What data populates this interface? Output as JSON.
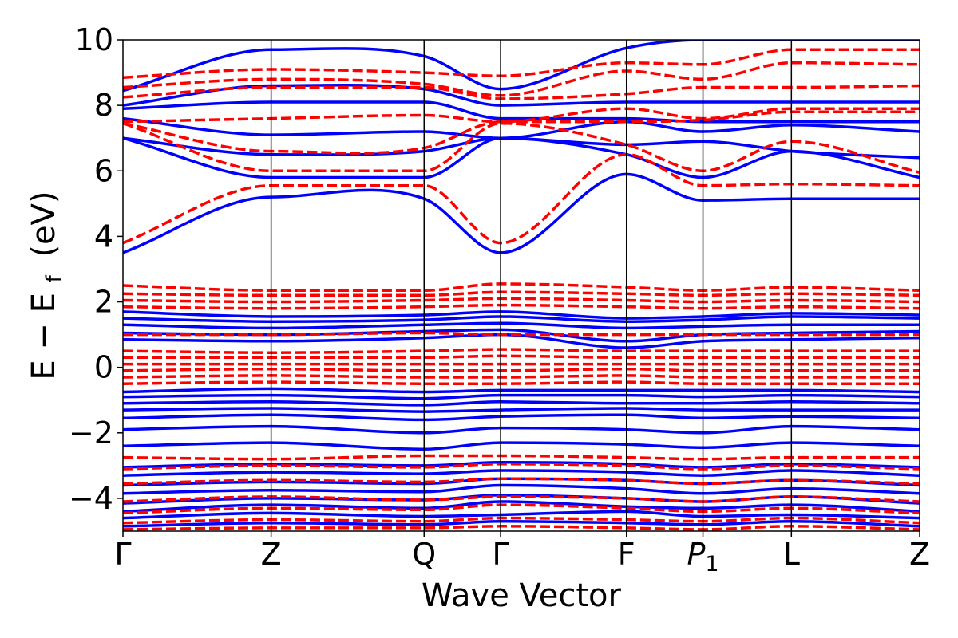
{
  "chart_data": {
    "type": "line",
    "title": "",
    "xlabel": "Wave Vector",
    "ylabel_main": "E − E",
    "ylabel_sub": "f",
    "ylabel_unit": "(eV)",
    "ylim": [
      -5,
      10
    ],
    "yticks": [
      -4,
      -2,
      0,
      2,
      4,
      6,
      8,
      10
    ],
    "ytick_labels": [
      "−4",
      "−2",
      "0",
      "2",
      "4",
      "6",
      "8",
      "10"
    ],
    "xlim": [
      0,
      1
    ],
    "kpoints": [
      {
        "x": 0.0,
        "label": "Γ"
      },
      {
        "x": 0.186,
        "label": "Z"
      },
      {
        "x": 0.378,
        "label": "Q"
      },
      {
        "x": 0.474,
        "label": "Γ"
      },
      {
        "x": 0.632,
        "label": "F"
      },
      {
        "x": 0.728,
        "label": "P",
        "sub": "1"
      },
      {
        "x": 0.839,
        "label": "L"
      },
      {
        "x": 1.0,
        "label": "Z"
      }
    ],
    "colors": {
      "series_a": "#0000ff",
      "series_b": "#ff0000",
      "axes": "#000000"
    },
    "series": [
      {
        "name": "blue-solid",
        "style": "solid",
        "bands": [
          [
            -4.85,
            -4.75,
            -4.8,
            -4.7,
            -4.75,
            -4.8,
            -4.7,
            -4.85
          ],
          [
            -4.6,
            -4.45,
            -4.55,
            -4.5,
            -4.4,
            -4.55,
            -4.5,
            -4.6
          ],
          [
            -4.4,
            -4.2,
            -4.3,
            -4.1,
            -4.25,
            -4.3,
            -4.2,
            -4.4
          ],
          [
            -4.15,
            -4.0,
            -4.05,
            -3.9,
            -4.0,
            -4.1,
            -3.95,
            -4.15
          ],
          [
            -3.85,
            -3.75,
            -3.8,
            -3.6,
            -3.7,
            -3.85,
            -3.7,
            -3.85
          ],
          [
            -3.6,
            -3.5,
            -3.55,
            -3.4,
            -3.45,
            -3.55,
            -3.45,
            -3.6
          ],
          [
            -3.3,
            -3.2,
            -3.25,
            -3.15,
            -3.2,
            -3.3,
            -3.15,
            -3.3
          ],
          [
            -3.05,
            -2.95,
            -3.0,
            -2.9,
            -2.95,
            -3.05,
            -2.95,
            -3.05
          ],
          [
            -2.4,
            -2.3,
            -2.5,
            -2.3,
            -2.35,
            -2.45,
            -2.3,
            -2.4
          ],
          [
            -1.9,
            -1.8,
            -2.0,
            -1.85,
            -1.9,
            -2.0,
            -1.8,
            -1.9
          ],
          [
            -1.55,
            -1.45,
            -1.6,
            -1.5,
            -1.45,
            -1.55,
            -1.5,
            -1.55
          ],
          [
            -1.3,
            -1.25,
            -1.35,
            -1.3,
            -1.25,
            -1.3,
            -1.3,
            -1.3
          ],
          [
            -1.1,
            -1.05,
            -1.15,
            -1.05,
            -1.1,
            -1.1,
            -1.05,
            -1.1
          ],
          [
            -0.9,
            -0.85,
            -0.95,
            -0.85,
            -0.85,
            -0.9,
            -0.85,
            -0.9
          ],
          [
            -0.75,
            -0.65,
            -0.75,
            -0.7,
            -0.7,
            -0.7,
            -0.7,
            -0.75
          ],
          [
            0.85,
            0.8,
            0.9,
            1.0,
            0.6,
            0.8,
            0.85,
            0.9
          ],
          [
            1.05,
            1.0,
            1.1,
            1.15,
            0.8,
            1.0,
            1.05,
            1.1
          ],
          [
            1.3,
            1.2,
            1.3,
            1.35,
            1.2,
            1.25,
            1.3,
            1.3
          ],
          [
            1.5,
            1.4,
            1.45,
            1.55,
            1.4,
            1.45,
            1.55,
            1.5
          ],
          [
            1.7,
            1.55,
            1.6,
            1.7,
            1.5,
            1.55,
            1.65,
            1.6
          ],
          [
            3.5,
            5.2,
            5.15,
            3.5,
            5.9,
            5.1,
            5.15,
            5.15
          ],
          [
            7.0,
            5.8,
            5.8,
            7.0,
            6.5,
            5.8,
            6.6,
            5.8
          ],
          [
            7.0,
            6.5,
            6.6,
            7.0,
            6.8,
            6.9,
            6.6,
            6.4
          ],
          [
            7.6,
            7.1,
            7.2,
            7.0,
            7.5,
            7.2,
            7.4,
            7.2
          ],
          [
            7.9,
            8.1,
            8.1,
            7.6,
            7.6,
            7.5,
            7.5,
            7.5
          ],
          [
            8.0,
            8.6,
            8.5,
            8.0,
            8.1,
            8.1,
            8.1,
            8.1
          ],
          [
            8.45,
            9.7,
            9.5,
            8.5,
            9.75,
            10.0,
            10.0,
            10.0
          ]
        ]
      },
      {
        "name": "red-dashed",
        "style": "dashed",
        "bands": [
          [
            -4.95,
            -4.9,
            -4.9,
            -4.85,
            -4.9,
            -4.95,
            -4.85,
            -4.95
          ],
          [
            -4.75,
            -4.65,
            -4.7,
            -4.6,
            -4.65,
            -4.7,
            -4.6,
            -4.75
          ],
          [
            -4.45,
            -4.3,
            -4.35,
            -4.2,
            -4.3,
            -4.4,
            -4.3,
            -4.45
          ],
          [
            -4.1,
            -3.95,
            -4.05,
            -3.95,
            -4.0,
            -4.1,
            -3.95,
            -4.1
          ],
          [
            -3.55,
            -3.45,
            -3.5,
            -3.4,
            -3.45,
            -3.55,
            -3.45,
            -3.55
          ],
          [
            -3.1,
            -3.0,
            -3.05,
            -2.95,
            -3.0,
            -3.1,
            -3.0,
            -3.1
          ],
          [
            -2.75,
            -2.8,
            -2.7,
            -2.7,
            -2.75,
            -2.8,
            -2.75,
            -2.75
          ],
          [
            -0.5,
            -0.45,
            -0.5,
            -0.5,
            -0.45,
            -0.5,
            -0.5,
            -0.5
          ],
          [
            -0.3,
            -0.25,
            -0.3,
            -0.3,
            -0.25,
            -0.3,
            -0.3,
            -0.3
          ],
          [
            -0.1,
            -0.05,
            -0.1,
            -0.1,
            -0.05,
            -0.1,
            -0.1,
            -0.1
          ],
          [
            0.1,
            0.1,
            0.1,
            0.1,
            0.1,
            0.1,
            0.1,
            0.1
          ],
          [
            0.3,
            0.3,
            0.3,
            0.35,
            0.3,
            0.3,
            0.3,
            0.3
          ],
          [
            0.5,
            0.45,
            0.5,
            0.55,
            0.5,
            0.5,
            0.5,
            0.5
          ],
          [
            1.0,
            1.0,
            1.05,
            1.0,
            1.0,
            1.0,
            1.0,
            1.0
          ],
          [
            1.85,
            1.8,
            1.85,
            1.9,
            1.85,
            1.8,
            1.85,
            1.8
          ],
          [
            2.05,
            2.0,
            2.05,
            2.1,
            2.05,
            2.0,
            2.05,
            2.0
          ],
          [
            2.25,
            2.2,
            2.2,
            2.3,
            2.25,
            2.2,
            2.25,
            2.2
          ],
          [
            2.5,
            2.35,
            2.35,
            2.55,
            2.45,
            2.35,
            2.45,
            2.35
          ],
          [
            3.8,
            5.55,
            5.55,
            3.8,
            6.5,
            5.55,
            5.6,
            5.55
          ],
          [
            7.45,
            6.0,
            6.0,
            7.45,
            6.8,
            6.0,
            6.9,
            5.95
          ],
          [
            7.45,
            6.6,
            6.7,
            7.5,
            7.5,
            7.55,
            7.8,
            7.8
          ],
          [
            7.5,
            7.6,
            7.7,
            7.5,
            7.9,
            7.6,
            7.9,
            7.9
          ],
          [
            8.25,
            8.55,
            8.55,
            8.2,
            8.35,
            8.55,
            8.55,
            8.6
          ],
          [
            8.55,
            8.8,
            8.65,
            8.3,
            9.05,
            8.8,
            9.3,
            9.25
          ],
          [
            8.85,
            9.1,
            9.0,
            8.9,
            9.3,
            9.25,
            9.7,
            9.7
          ]
        ]
      }
    ]
  }
}
